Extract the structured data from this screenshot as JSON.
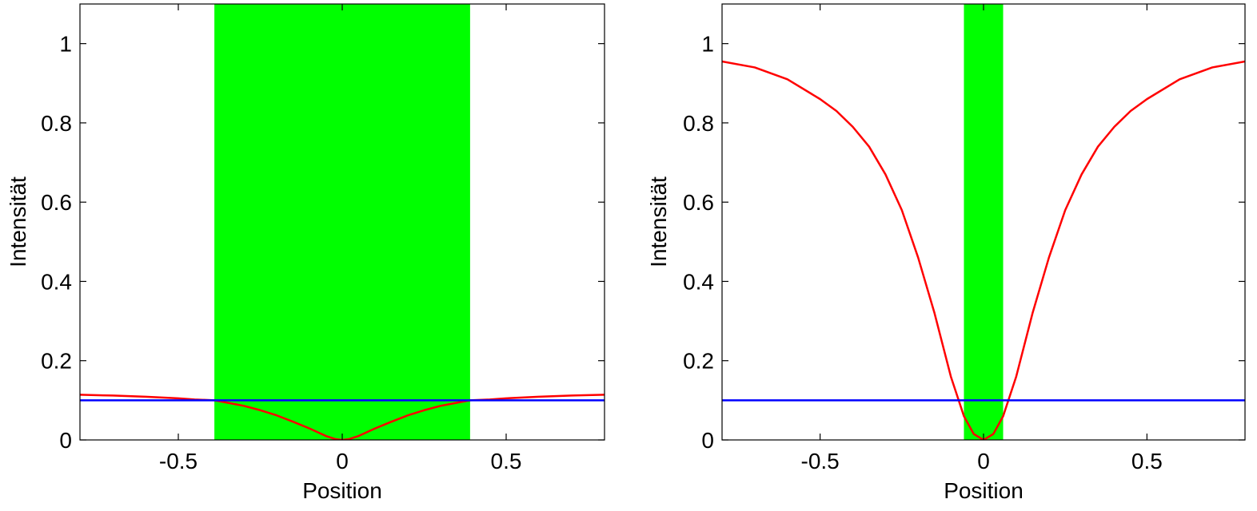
{
  "chart_data": [
    {
      "type": "line",
      "xlabel": "Position",
      "ylabel": "Intensität",
      "xlim": [
        -0.8,
        0.8
      ],
      "ylim": [
        0,
        1.1
      ],
      "xticks": [
        -0.5,
        0,
        0.5
      ],
      "xtick_labels": [
        "-0.5",
        "0",
        "0.5"
      ],
      "yticks": [
        0,
        0.2,
        0.4,
        0.6,
        0.8,
        1
      ],
      "ytick_labels": [
        "0",
        "0.2",
        "0.4",
        "0.6",
        "0.8",
        "1"
      ],
      "grid": false,
      "shaded_region": {
        "x": [
          -0.39,
          0.39
        ],
        "color": "#00ff00"
      },
      "series": [
        {
          "color": "#ff0000",
          "x": [
            -0.8,
            -0.7,
            -0.6,
            -0.5,
            -0.45,
            -0.39,
            -0.35,
            -0.3,
            -0.25,
            -0.2,
            -0.15,
            -0.1,
            -0.05,
            -0.02,
            0,
            0.02,
            0.05,
            0.1,
            0.15,
            0.2,
            0.25,
            0.3,
            0.35,
            0.39,
            0.45,
            0.5,
            0.6,
            0.7,
            0.8
          ],
          "y": [
            0.114,
            0.112,
            0.109,
            0.105,
            0.102,
            0.1,
            0.094,
            0.086,
            0.075,
            0.062,
            0.046,
            0.029,
            0.01,
            0.002,
            0,
            0.002,
            0.01,
            0.029,
            0.046,
            0.062,
            0.075,
            0.086,
            0.094,
            0.1,
            0.102,
            0.105,
            0.109,
            0.112,
            0.114
          ]
        },
        {
          "color": "#0000ff",
          "x": [
            -0.8,
            0.8
          ],
          "y": [
            0.1,
            0.1
          ]
        }
      ]
    },
    {
      "type": "line",
      "xlabel": "Position",
      "ylabel": "Intensität",
      "xlim": [
        -0.8,
        0.8
      ],
      "ylim": [
        0,
        1.1
      ],
      "xticks": [
        -0.5,
        0,
        0.5
      ],
      "xtick_labels": [
        "-0.5",
        "0",
        "0.5"
      ],
      "yticks": [
        0,
        0.2,
        0.4,
        0.6,
        0.8,
        1
      ],
      "ytick_labels": [
        "0",
        "0.2",
        "0.4",
        "0.6",
        "0.8",
        "1"
      ],
      "grid": false,
      "shaded_region": {
        "x": [
          -0.06,
          0.06
        ],
        "color": "#00ff00"
      },
      "series": [
        {
          "color": "#ff0000",
          "x": [
            -0.8,
            -0.7,
            -0.6,
            -0.5,
            -0.45,
            -0.4,
            -0.35,
            -0.3,
            -0.25,
            -0.2,
            -0.15,
            -0.1,
            -0.06,
            -0.03,
            0,
            0.03,
            0.06,
            0.1,
            0.15,
            0.2,
            0.25,
            0.3,
            0.35,
            0.4,
            0.45,
            0.5,
            0.6,
            0.7,
            0.8
          ],
          "y": [
            0.955,
            0.94,
            0.91,
            0.86,
            0.83,
            0.79,
            0.74,
            0.67,
            0.58,
            0.46,
            0.32,
            0.16,
            0.06,
            0.015,
            0,
            0.015,
            0.06,
            0.16,
            0.32,
            0.46,
            0.58,
            0.67,
            0.74,
            0.79,
            0.83,
            0.86,
            0.91,
            0.94,
            0.955
          ]
        },
        {
          "color": "#0000ff",
          "x": [
            -0.8,
            0.8
          ],
          "y": [
            0.1,
            0.1
          ]
        }
      ]
    }
  ]
}
